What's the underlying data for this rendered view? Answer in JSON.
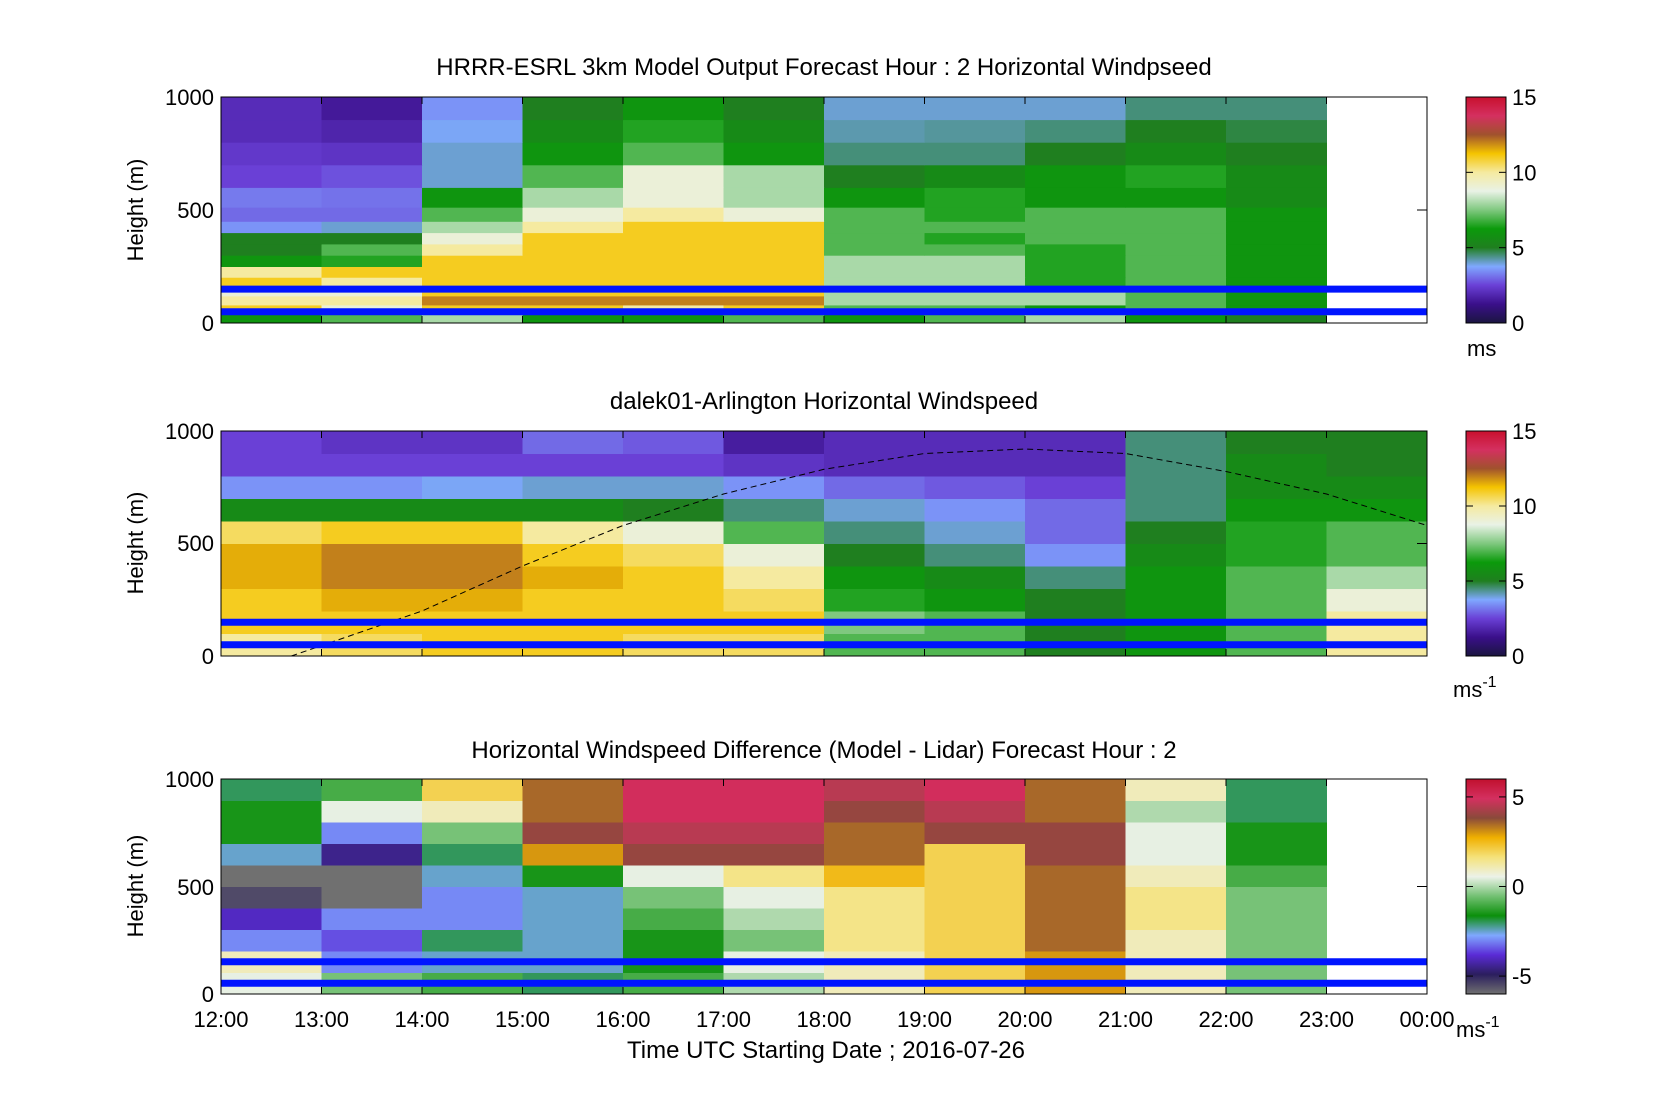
{
  "figure": {
    "xlabel": "Time UTC  Starting Date ; 2016-07-26",
    "x_ticks": [
      "12:00",
      "13:00",
      "14:00",
      "15:00",
      "16:00",
      "17:00",
      "18:00",
      "19:00",
      "20:00",
      "21:00",
      "22:00",
      "23:00",
      "00:00"
    ]
  },
  "colormaps": {
    "speed_stops": [
      "#1b1540",
      "#3a0f8a",
      "#6a40d6",
      "#7fa8ff",
      "#1f7f1f",
      "#0b9a0b",
      "#7fc87f",
      "#e9f2e6",
      "#f5eaa0",
      "#f5c400",
      "#a0522d",
      "#d43060",
      "#c8102e"
    ],
    "diff_stops": [
      "#707070",
      "#2b1e5e",
      "#5a2bd6",
      "#7fa8ff",
      "#0b8f0b",
      "#72c072",
      "#ecf2e8",
      "#f5e27a",
      "#f0b000",
      "#8a4a3a",
      "#d43060",
      "#c0102e"
    ]
  },
  "chart_data": [
    {
      "type": "heatmap",
      "title": "HRRR-ESRL 3km Model Output   Forecast Hour : 2 Horizontal Windpseed",
      "ylabel": "Height (m)",
      "y_ticks": [
        "0",
        "500",
        "1000"
      ],
      "ylim": [
        0,
        1000
      ],
      "xlim_hours": [
        12,
        24
      ],
      "colorbar": {
        "ticks": [
          "0",
          "5",
          "10",
          "15"
        ],
        "range": [
          0,
          15
        ],
        "unit": "ms",
        "colormap": "speed"
      },
      "reference_lines_m": [
        150,
        50
      ],
      "x_hours": [
        12,
        13,
        14,
        15,
        16,
        17,
        18,
        19,
        20,
        21,
        22
      ],
      "y_levels_m": [
        20,
        60,
        100,
        140,
        180,
        225,
        275,
        325,
        375,
        425,
        475,
        550,
        650,
        750,
        850,
        950
      ],
      "values": [
        [
          6,
          7,
          8,
          6,
          6,
          7,
          6,
          7,
          8,
          6,
          5
        ],
        [
          11,
          9,
          11,
          11,
          10,
          11,
          7,
          7,
          6,
          7,
          6
        ],
        [
          10,
          10,
          12,
          12,
          12,
          12,
          8,
          8,
          8,
          7,
          6
        ],
        [
          9,
          9,
          11,
          11,
          11,
          11,
          8,
          8,
          8,
          7,
          6
        ],
        [
          11,
          10,
          11,
          11,
          11,
          11,
          8,
          8,
          6.5,
          7,
          6
        ],
        [
          10,
          11,
          11,
          11,
          11,
          11,
          8,
          8,
          6.5,
          7,
          6
        ],
        [
          6,
          6.5,
          11,
          11,
          11,
          11,
          8,
          8,
          6.5,
          7,
          6
        ],
        [
          5,
          7,
          10,
          11,
          11,
          11,
          7,
          7,
          6.5,
          7,
          6
        ],
        [
          5,
          5,
          9,
          11,
          11,
          11,
          7,
          6.5,
          7,
          7,
          6
        ],
        [
          3.5,
          4,
          8,
          10,
          11,
          11,
          7,
          7,
          7,
          7,
          6
        ],
        [
          3,
          3,
          7,
          9,
          10,
          9,
          7,
          6.5,
          7,
          7,
          6
        ],
        [
          3.2,
          3.1,
          6,
          8,
          9,
          8,
          6,
          6.5,
          6,
          6,
          5.5
        ],
        [
          2.5,
          2.7,
          4,
          7,
          9,
          8,
          5,
          5.5,
          6,
          6.5,
          5.5
        ],
        [
          2.3,
          2.2,
          4,
          6,
          7,
          6,
          4.5,
          4.5,
          5,
          5.5,
          5
        ],
        [
          2,
          1.8,
          3.8,
          5.5,
          6.5,
          5.5,
          4.2,
          4.3,
          4.5,
          5,
          4.8
        ],
        [
          2,
          1.5,
          3.5,
          5,
          6,
          5,
          4,
          4,
          4,
          4.5,
          4.5
        ]
      ]
    },
    {
      "type": "heatmap",
      "title": "dalek01-Arlington  Horizontal Windspeed",
      "ylabel": "Height (m)",
      "y_ticks": [
        "0",
        "500",
        "1000"
      ],
      "ylim": [
        0,
        1000
      ],
      "xlim_hours": [
        12,
        24
      ],
      "colorbar": {
        "ticks": [
          "0",
          "5",
          "10",
          "15"
        ],
        "range": [
          0,
          15
        ],
        "unit": "ms",
        "unit_exponent": "-1",
        "colormap": "speed"
      },
      "reference_lines_m": [
        150,
        50
      ],
      "boundary_layer_curve": {
        "x_hours": [
          12.7,
          14,
          15,
          16,
          17,
          18,
          19,
          20,
          21,
          22,
          23,
          24
        ],
        "y_m": [
          0,
          200,
          400,
          580,
          720,
          830,
          900,
          920,
          900,
          820,
          720,
          580
        ]
      },
      "x_hours": [
        12,
        13,
        14,
        15,
        16,
        17,
        18,
        19,
        20,
        21,
        22,
        23
      ],
      "y_levels_m": [
        50,
        150,
        250,
        350,
        450,
        550,
        650,
        750,
        850,
        950
      ],
      "values": [
        [
          10,
          10.5,
          11,
          11,
          10.5,
          10.5,
          7,
          7,
          5,
          6,
          7,
          10
        ],
        [
          11,
          11,
          11,
          11,
          11,
          11,
          7.5,
          7,
          5,
          6,
          7,
          10
        ],
        [
          11,
          11.5,
          11.5,
          11,
          11,
          10.5,
          6.5,
          6,
          5,
          6,
          7,
          9
        ],
        [
          11.5,
          12,
          12,
          11.5,
          11,
          10,
          6,
          5.5,
          4.5,
          6,
          7,
          8
        ],
        [
          11.5,
          12,
          12,
          11,
          10.5,
          9,
          5,
          4.5,
          3.5,
          5.5,
          6.5,
          7
        ],
        [
          10.5,
          11,
          11,
          10,
          9,
          7,
          4.5,
          4,
          3,
          5,
          6.5,
          7
        ],
        [
          5.5,
          5.5,
          5.5,
          5.5,
          5,
          4.5,
          4,
          3.5,
          3,
          4.5,
          6,
          6
        ],
        [
          3.5,
          3.5,
          3.8,
          4,
          4,
          3.5,
          3,
          2.8,
          2.5,
          4.5,
          5.5,
          5.5
        ],
        [
          2.5,
          2.5,
          2.5,
          2.5,
          2.5,
          2.2,
          2,
          2,
          2,
          4.5,
          5.5,
          5
        ],
        [
          2.5,
          2.2,
          2.2,
          3,
          2.8,
          1.6,
          2,
          2,
          2,
          4.5,
          5,
          5
        ]
      ]
    },
    {
      "type": "heatmap",
      "title": "Horizontal Windspeed Difference (Model - Lidar) Forecast Hour : 2",
      "ylabel": "Height (m)",
      "y_ticks": [
        "0",
        "500",
        "1000"
      ],
      "ylim": [
        0,
        1000
      ],
      "xlim_hours": [
        12,
        24
      ],
      "colorbar": {
        "ticks": [
          "-5",
          "0",
          "5"
        ],
        "range": [
          -6,
          6
        ],
        "unit": "ms",
        "unit_exponent": "-1",
        "colormap": "diff"
      },
      "reference_lines_m": [
        150,
        50
      ],
      "x_hours": [
        12,
        13,
        14,
        15,
        16,
        17,
        18,
        19,
        20,
        21,
        22
      ],
      "y_levels_m": [
        50,
        150,
        250,
        350,
        450,
        550,
        650,
        750,
        850,
        950
      ],
      "values": [
        [
          0.5,
          -0.5,
          -1,
          -2,
          -1,
          0,
          1,
          2,
          3,
          1,
          -0.5
        ],
        [
          1,
          -3,
          -2.5,
          -2.5,
          -1.5,
          0.5,
          1,
          2,
          3,
          1,
          -0.5
        ],
        [
          -3,
          -3.5,
          -2,
          -2.5,
          -1.5,
          -0.5,
          1.5,
          2,
          3.5,
          1,
          -0.5
        ],
        [
          -4,
          -3,
          -3,
          -2.5,
          -1,
          0,
          1.5,
          2,
          3.5,
          1.5,
          -0.5
        ],
        [
          -5.5,
          -6,
          -3,
          -2.5,
          -0.5,
          0.5,
          1.5,
          2,
          3.5,
          1.5,
          -0.5
        ],
        [
          -6,
          -6,
          -2.5,
          -1.5,
          0.5,
          1.5,
          2.5,
          2,
          3.5,
          1,
          -1
        ],
        [
          -2.5,
          -4.5,
          -2,
          3,
          4,
          4,
          3.5,
          2,
          4,
          0.5,
          -1.5
        ],
        [
          -1.5,
          -3,
          -0.5,
          4,
          4.5,
          4.5,
          3.5,
          4,
          4,
          0.5,
          -1.5
        ],
        [
          -1.5,
          0.5,
          1,
          3.5,
          5,
          5,
          4,
          4.5,
          3.5,
          0,
          -2
        ],
        [
          -2,
          -1,
          2,
          3.5,
          5,
          5,
          4.5,
          5,
          3.5,
          1,
          -2
        ]
      ]
    }
  ]
}
